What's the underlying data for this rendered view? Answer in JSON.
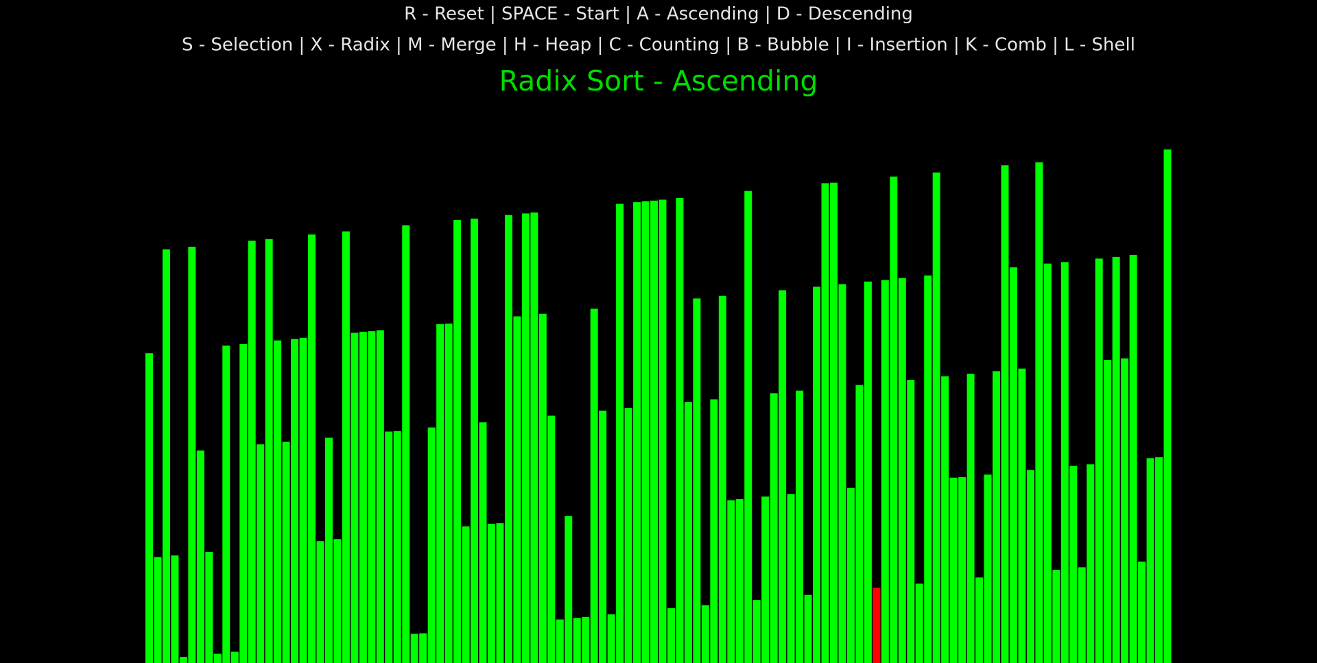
{
  "instructions": [
    "R - Reset | SPACE - Start | A - Ascending | D - Descending",
    "S - Selection | X - Radix | M - Merge | H - Heap | C - Counting | B - Bubble | I - Insertion | K - Comb | L - Shell"
  ],
  "chart_data": {
    "type": "bar",
    "title": "Radix Sort - Ascending",
    "color": "#00ff00",
    "highlight": {
      "index": 85,
      "color": "#ff0000"
    },
    "values": [
      605,
      207,
      808,
      210,
      12,
      813,
      415,
      217,
      18,
      620,
      22,
      623,
      825,
      427,
      828,
      630,
      432,
      633,
      635,
      837,
      238,
      440,
      242,
      843,
      645,
      647,
      648,
      650,
      452,
      453,
      855,
      57,
      58,
      460,
      662,
      663,
      865,
      267,
      868,
      470,
      272,
      273,
      875,
      677,
      878,
      880,
      682,
      483,
      85,
      287,
      88,
      90,
      692,
      493,
      95,
      897,
      498,
      900,
      902,
      903,
      905,
      107,
      908,
      510,
      712,
      113,
      515,
      717,
      318,
      320,
      922,
      123,
      325,
      527,
      728,
      330,
      532,
      133,
      735,
      937,
      938,
      740,
      342,
      543,
      745,
      147,
      748,
      950,
      752,
      553,
      155,
      757,
      958,
      560,
      362,
      363,
      565,
      167,
      368,
      570,
      972,
      773,
      575,
      377,
      978,
      780,
      182,
      783,
      385,
      187,
      388,
      790,
      592,
      793,
      595,
      797,
      198,
      400,
      402,
      1003
    ]
  }
}
